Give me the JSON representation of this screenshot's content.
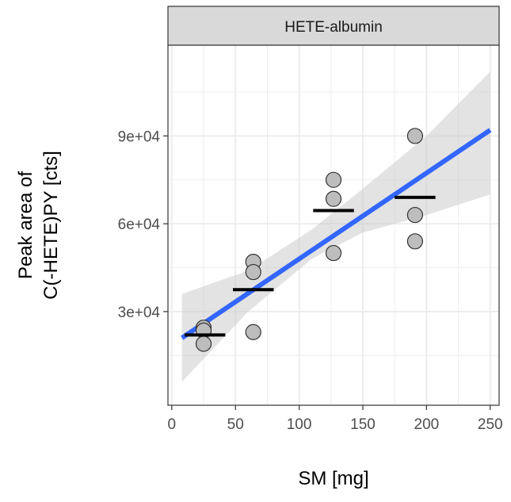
{
  "chart_data": {
    "type": "scatter",
    "facet_label": "HETE-albumin",
    "xlabel": "SM [mg]",
    "ylabel_lines": [
      "Peak area of",
      "C(-HETE)PY [cts]"
    ],
    "xlim": [
      -3,
      257
    ],
    "ylim": [
      -2000,
      121000
    ],
    "x_ticks": [
      0,
      50,
      100,
      150,
      200,
      250
    ],
    "x_tick_labels": [
      "0",
      "50",
      "100",
      "150",
      "200",
      "250"
    ],
    "y_ticks": [
      30000,
      60000,
      90000
    ],
    "y_tick_labels": [
      "3e+04",
      "6e+04",
      "9e+04"
    ],
    "grid": true,
    "points": [
      {
        "x": 25,
        "y": 24500
      },
      {
        "x": 25,
        "y": 23500
      },
      {
        "x": 25,
        "y": 19000
      },
      {
        "x": 64,
        "y": 47000
      },
      {
        "x": 64,
        "y": 43500
      },
      {
        "x": 64,
        "y": 23000
      },
      {
        "x": 127,
        "y": 75000
      },
      {
        "x": 127,
        "y": 68500
      },
      {
        "x": 127,
        "y": 50000
      },
      {
        "x": 191,
        "y": 90000
      },
      {
        "x": 191,
        "y": 63000
      },
      {
        "x": 191,
        "y": 54000
      }
    ],
    "means": [
      {
        "x": 25,
        "x_from": 10,
        "x_to": 42,
        "y": 22000
      },
      {
        "x": 64,
        "x_from": 48,
        "x_to": 80,
        "y": 37500
      },
      {
        "x": 127,
        "x_from": 111,
        "x_to": 143,
        "y": 64500
      },
      {
        "x": 191,
        "x_from": 175,
        "x_to": 207,
        "y": 69000
      }
    ],
    "fit": {
      "x": [
        8,
        250
      ],
      "y": [
        21000,
        92000
      ]
    },
    "confidence_band": {
      "x": [
        8,
        60,
        110,
        150,
        200,
        250
      ],
      "lower": [
        6000,
        30000,
        48000,
        57000,
        63000,
        70000
      ],
      "upper": [
        36000,
        44000,
        58000,
        72000,
        90000,
        112000
      ]
    },
    "colors": {
      "fit_line": "#3366ff",
      "band": "#cccccc",
      "point_fill": "#bdbdbd",
      "point_stroke": "#333333",
      "mean_bar": "#000000",
      "strip_fill": "#d9d9d9",
      "grid": "#ebebeb"
    }
  }
}
